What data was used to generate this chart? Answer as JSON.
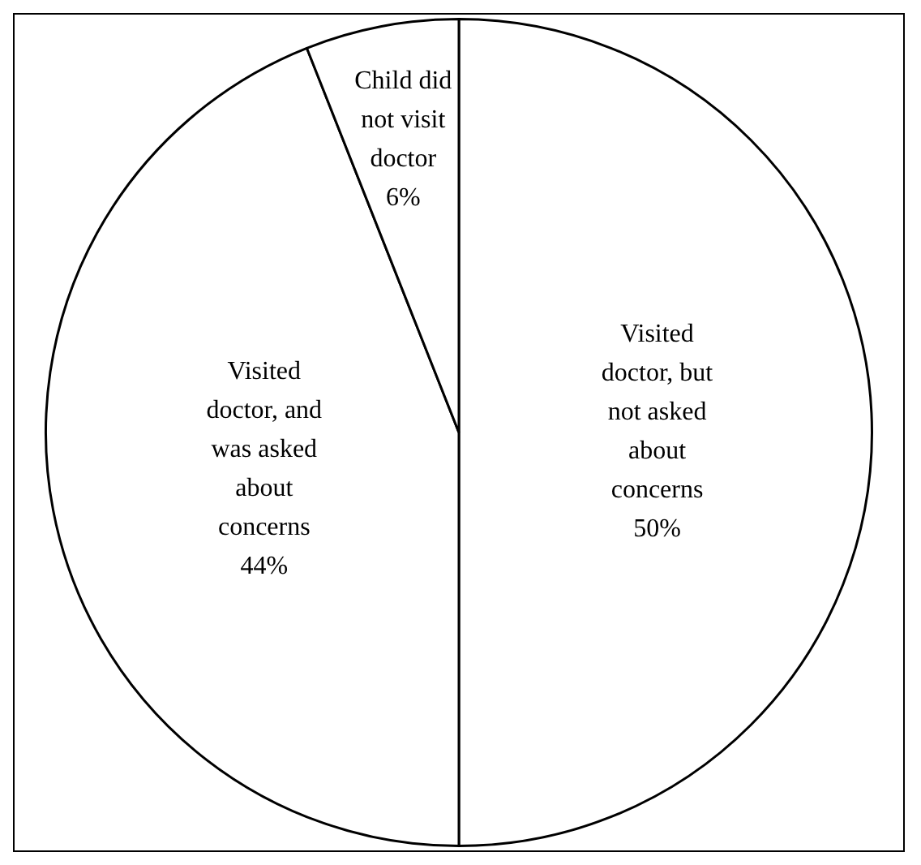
{
  "chart_data": {
    "type": "pie",
    "categories": [
      "Visited doctor, but not asked about concerns",
      "Visited doctor, and was asked about concerns",
      "Child did not visit doctor"
    ],
    "values": [
      50,
      44,
      6
    ],
    "value_labels": [
      "50%",
      "44%",
      "6%"
    ],
    "colors": [
      "#ffffff",
      "#ffffff",
      "#ffffff"
    ]
  }
}
